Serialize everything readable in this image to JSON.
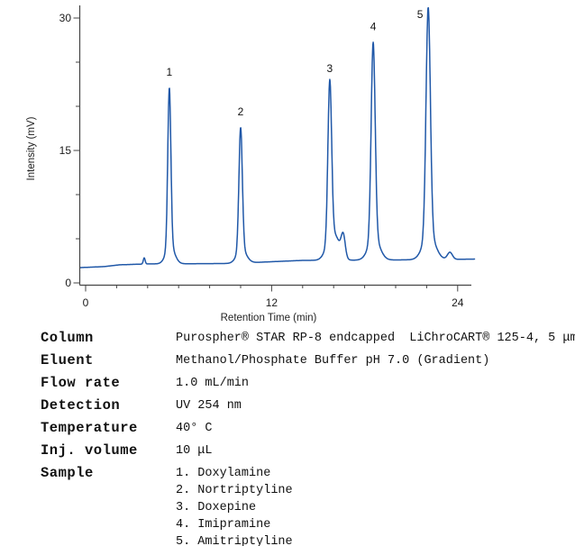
{
  "chart_data": {
    "type": "line",
    "title": "",
    "xlabel": "Retention Time (min)",
    "ylabel": "Intensity (mV)",
    "xlim": [
      0,
      25.2
    ],
    "ylim": [
      0,
      31.5
    ],
    "x_major_ticks": [
      0,
      12,
      24
    ],
    "x_minor_tick_step": 2,
    "y_major_ticks": [
      0,
      15,
      30
    ],
    "y_minor_tick_step": 5,
    "grid": false,
    "legend": "none",
    "line_color": "#2058a8",
    "axis_color": "#454545",
    "baseline_mV": [
      [
        -0.4,
        1.73
      ],
      [
        0.3,
        1.78
      ],
      [
        1.2,
        1.85
      ],
      [
        2.2,
        2.05
      ],
      [
        4,
        2.15
      ],
      [
        9.5,
        2.2
      ],
      [
        12,
        2.4
      ],
      [
        14,
        2.55
      ],
      [
        20,
        2.6
      ],
      [
        25.1,
        2.7
      ]
    ],
    "peaks": [
      {
        "label": "1",
        "name": "Doxylamine",
        "rt_min": 5.4,
        "height_mV": 20.0,
        "sigma_min": 0.1
      },
      {
        "label": "2",
        "name": "Nortriptyline",
        "rt_min": 10.0,
        "height_mV": 15.4,
        "sigma_min": 0.11
      },
      {
        "label": "3",
        "name": "Doxepine",
        "rt_min": 15.75,
        "height_mV": 20.0,
        "sigma_min": 0.12
      },
      {
        "label": "4",
        "name": "Imipramine",
        "rt_min": 18.55,
        "height_mV": 24.7,
        "sigma_min": 0.13
      },
      {
        "label": "5",
        "name": "Amitriptyline",
        "rt_min": 22.1,
        "height_mV": 28.6,
        "sigma_min": 0.14,
        "label_dx": -9,
        "label_dy": 12
      }
    ],
    "minor_features": [
      {
        "rt_min": 3.78,
        "height_mV": 0.7,
        "sigma_min": 0.06
      },
      {
        "rt_min": 16.2,
        "height_mV": 1.6,
        "sigma_min": 0.3
      },
      {
        "rt_min": 16.62,
        "height_mV": 2.4,
        "sigma_min": 0.13
      },
      {
        "rt_min": 23.5,
        "height_mV": 0.8,
        "sigma_min": 0.16
      }
    ]
  },
  "conditions": {
    "rows": [
      {
        "label": "Column",
        "values": [
          "Purospher® STAR RP-8 endcapped  LiChroCART® 125-4, 5 μm"
        ]
      },
      {
        "label": "Eluent",
        "values": [
          "Methanol/Phosphate Buffer pH 7.0 (Gradient)"
        ]
      },
      {
        "label": "Flow rate",
        "values": [
          "1.0 mL/min"
        ]
      },
      {
        "label": "Detection",
        "values": [
          "UV 254 nm"
        ]
      },
      {
        "label": "Temperature",
        "values": [
          "40° C"
        ]
      },
      {
        "label": "Inj. volume",
        "values": [
          "10 μL"
        ]
      },
      {
        "label": "Sample",
        "values": [
          "1. Doxylamine",
          "2. Nortriptyline",
          "3. Doxepine",
          "4. Imipramine",
          "5. Amitriptyline"
        ]
      }
    ]
  }
}
